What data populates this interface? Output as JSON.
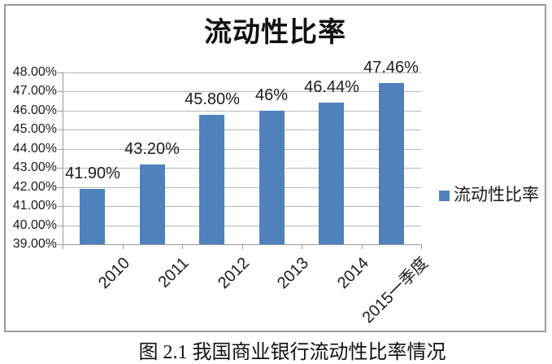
{
  "figure": {
    "caption": "图 2.1  我国商业银行流动性比率情况"
  },
  "chart_data": {
    "type": "bar",
    "title": "流动性比率",
    "categories": [
      "2010",
      "2011",
      "2012",
      "2013",
      "2014",
      "2015一季度"
    ],
    "series": [
      {
        "name": "流动性比率",
        "values": [
          41.9,
          43.2,
          45.8,
          46.0,
          46.44,
          47.46
        ]
      }
    ],
    "data_labels": [
      "41.90%",
      "43.20%",
      "45.80%",
      "46%",
      "46.44%",
      "47.46%"
    ],
    "xlabel": "",
    "ylabel": "",
    "ylim": [
      39,
      48
    ],
    "ytick_step": 1,
    "ytick_labels": [
      "39.00%",
      "40.00%",
      "41.00%",
      "42.00%",
      "43.00%",
      "44.00%",
      "45.00%",
      "46.00%",
      "47.00%",
      "48.00%"
    ],
    "grid": true,
    "legend_position": "right",
    "legend_label": "流动性比率"
  },
  "colors": {
    "bar": "#4F81BD",
    "gridline": "#b9b9b9",
    "axis": "#9b9b9b",
    "frame": "#9b9b9b",
    "text": "#1c1c1c"
  }
}
